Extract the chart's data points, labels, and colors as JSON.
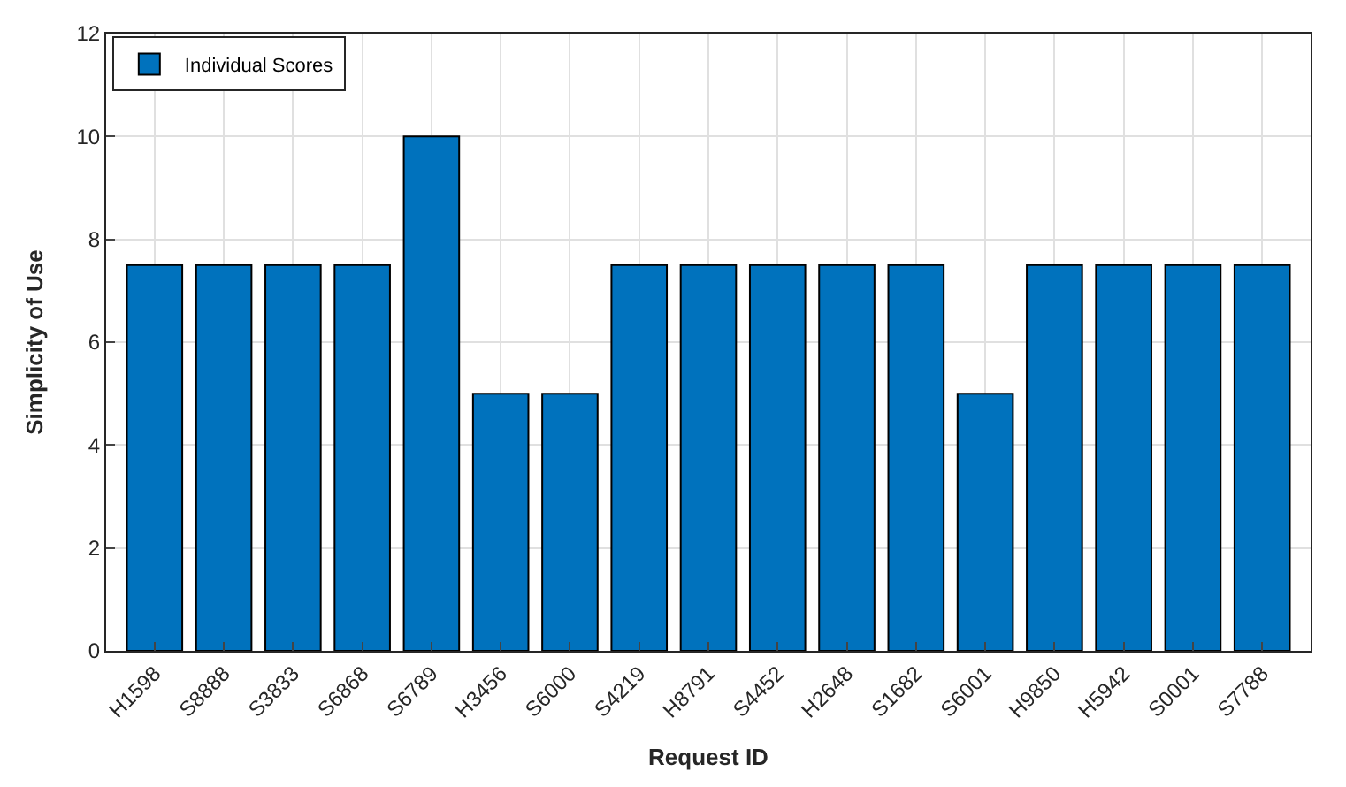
{
  "chart_data": {
    "type": "bar",
    "categories": [
      "H1598",
      "S8888",
      "S3833",
      "S6868",
      "S6789",
      "H3456",
      "S6000",
      "S4219",
      "H8791",
      "S4452",
      "H2648",
      "S1682",
      "S6001",
      "H9850",
      "H5942",
      "S0001",
      "S7788"
    ],
    "series": [
      {
        "name": "Individual Scores",
        "color": "#0072bd",
        "values": [
          7.5,
          7.5,
          7.5,
          7.5,
          10,
          5,
          5,
          7.5,
          7.5,
          7.5,
          7.5,
          7.5,
          5,
          7.5,
          7.5,
          7.5,
          7.5
        ]
      }
    ],
    "xlabel": "Request ID",
    "ylabel": "Simplicity of Use",
    "ylim": [
      0,
      12
    ],
    "yticks": [
      0,
      2,
      4,
      6,
      8,
      10,
      12
    ],
    "grid": true,
    "legend": "top left"
  }
}
